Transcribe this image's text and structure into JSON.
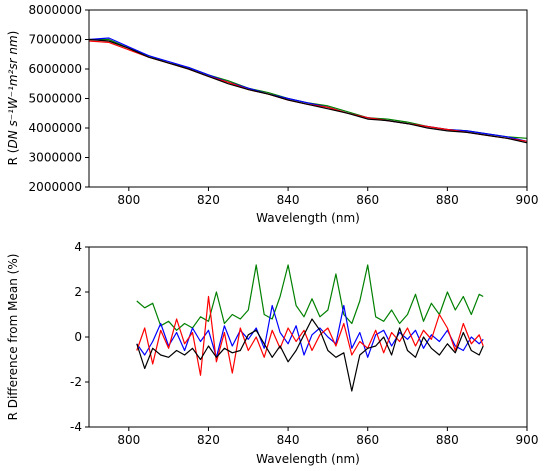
{
  "chart_data": [
    {
      "type": "line",
      "title": "",
      "xlabel": "Wavelength (nm)",
      "ylabel_prefix": "R (",
      "ylabel_units": "DN s⁻¹W⁻¹m²sr nm",
      "ylabel_suffix": ")",
      "xlim": [
        790,
        900
      ],
      "ylim": [
        2000000,
        8000000
      ],
      "xticks": [
        800,
        820,
        840,
        860,
        880,
        900
      ],
      "yticks": [
        2000000,
        3000000,
        4000000,
        5000000,
        6000000,
        7000000,
        8000000
      ],
      "ytick_labels": [
        "2000000",
        "3000000",
        "4000000",
        "5000000",
        "6000000",
        "7000000",
        "8000000"
      ],
      "grid": false,
      "series": [
        {
          "color": "#008000",
          "x": [
            790,
            795,
            800,
            805,
            810,
            815,
            820,
            825,
            830,
            835,
            840,
            845,
            850,
            855,
            860,
            865,
            870,
            875,
            880,
            885,
            890,
            895,
            900
          ],
          "values": [
            7000000,
            7000000,
            6700000,
            6450000,
            6200000,
            6050000,
            5800000,
            5600000,
            5350000,
            5200000,
            5000000,
            4850000,
            4750000,
            4550000,
            4350000,
            4300000,
            4200000,
            4050000,
            3950000,
            3900000,
            3800000,
            3700000,
            3650000
          ]
        },
        {
          "color": "#0000ff",
          "x": [
            790,
            795,
            800,
            805,
            810,
            815,
            820,
            825,
            830,
            835,
            840,
            845,
            850,
            855,
            860,
            865,
            870,
            875,
            880,
            885,
            890,
            895,
            900
          ],
          "values": [
            7000000,
            7050000,
            6750000,
            6450000,
            6250000,
            6050000,
            5800000,
            5550000,
            5350000,
            5150000,
            5000000,
            4850000,
            4700000,
            4500000,
            4350000,
            4250000,
            4150000,
            4050000,
            3950000,
            3900000,
            3800000,
            3700000,
            3550000
          ]
        },
        {
          "color": "#ff0000",
          "x": [
            790,
            795,
            800,
            805,
            810,
            815,
            820,
            825,
            830,
            835,
            840,
            845,
            850,
            855,
            860,
            865,
            870,
            875,
            880,
            885,
            890,
            895,
            900
          ],
          "values": [
            6950000,
            6900000,
            6650000,
            6400000,
            6200000,
            6000000,
            5750000,
            5550000,
            5300000,
            5150000,
            4950000,
            4800000,
            4700000,
            4500000,
            4350000,
            4250000,
            4150000,
            4050000,
            3950000,
            3850000,
            3750000,
            3650000,
            3550000
          ]
        },
        {
          "color": "#000000",
          "x": [
            790,
            795,
            800,
            805,
            810,
            815,
            820,
            825,
            830,
            835,
            840,
            845,
            850,
            855,
            860,
            865,
            870,
            875,
            880,
            885,
            890,
            895,
            900
          ],
          "values": [
            7000000,
            6950000,
            6700000,
            6400000,
            6200000,
            6000000,
            5750000,
            5500000,
            5300000,
            5150000,
            4950000,
            4800000,
            4650000,
            4500000,
            4300000,
            4250000,
            4150000,
            4000000,
            3900000,
            3850000,
            3750000,
            3650000,
            3500000
          ]
        }
      ]
    },
    {
      "type": "line",
      "title": "",
      "xlabel": "Wavelength (nm)",
      "ylabel": "R Difference from Mean (%)",
      "xlim": [
        790,
        900
      ],
      "ylim": [
        -4,
        4
      ],
      "xticks": [
        800,
        820,
        840,
        860,
        880,
        900
      ],
      "yticks": [
        -4,
        -2,
        0,
        2,
        4
      ],
      "grid": false,
      "series": [
        {
          "color": "#008000",
          "x": [
            802,
            804,
            806,
            808,
            810,
            812,
            814,
            816,
            818,
            820,
            822,
            824,
            826,
            828,
            830,
            832,
            834,
            836,
            838,
            840,
            842,
            844,
            846,
            848,
            850,
            852,
            854,
            856,
            858,
            860,
            862,
            864,
            866,
            868,
            870,
            872,
            874,
            876,
            878,
            880,
            882,
            884,
            886,
            888,
            889
          ],
          "values": [
            1.6,
            1.3,
            1.5,
            0.5,
            0.7,
            0.3,
            0.6,
            0.4,
            0.9,
            0.7,
            2.0,
            0.6,
            1.0,
            0.8,
            1.2,
            3.2,
            1.0,
            0.8,
            1.8,
            3.2,
            1.4,
            0.9,
            1.7,
            0.9,
            1.2,
            2.8,
            1.0,
            0.6,
            1.6,
            3.2,
            0.9,
            0.7,
            1.2,
            0.6,
            1.0,
            1.9,
            0.7,
            1.5,
            1.0,
            2.0,
            1.2,
            1.8,
            1.0,
            1.9,
            1.8
          ]
        },
        {
          "color": "#0000ff",
          "x": [
            802,
            804,
            806,
            808,
            810,
            812,
            814,
            816,
            818,
            820,
            822,
            824,
            826,
            828,
            830,
            832,
            834,
            836,
            838,
            840,
            842,
            844,
            846,
            848,
            850,
            852,
            854,
            856,
            858,
            860,
            862,
            864,
            866,
            868,
            870,
            872,
            874,
            876,
            878,
            880,
            882,
            884,
            886,
            888,
            889
          ],
          "values": [
            -0.3,
            -0.8,
            -0.2,
            0.6,
            -0.4,
            0.2,
            -0.6,
            0.4,
            -0.2,
            0.3,
            -0.9,
            0.5,
            -0.4,
            0.3,
            -0.1,
            0.4,
            -0.5,
            1.4,
            0.2,
            -0.3,
            0.5,
            -0.8,
            0.1,
            0.4,
            0.0,
            -0.3,
            1.4,
            -0.5,
            0.2,
            -0.9,
            0.1,
            0.3,
            -0.4,
            0.2,
            -0.1,
            0.3,
            -0.5,
            0.1,
            -0.2,
            0.3,
            -0.4,
            -0.6,
            0.0,
            -0.3,
            -0.1
          ]
        },
        {
          "color": "#ff0000",
          "x": [
            802,
            804,
            806,
            808,
            810,
            812,
            814,
            816,
            818,
            820,
            822,
            824,
            826,
            828,
            830,
            832,
            834,
            836,
            838,
            840,
            842,
            844,
            846,
            848,
            850,
            852,
            854,
            856,
            858,
            860,
            862,
            864,
            866,
            868,
            870,
            872,
            874,
            876,
            878,
            880,
            882,
            884,
            886,
            888,
            889
          ],
          "values": [
            -0.6,
            0.4,
            -1.2,
            0.3,
            -0.5,
            0.8,
            -0.3,
            0.2,
            -1.7,
            1.8,
            -1.1,
            0.2,
            -1.6,
            0.4,
            -0.6,
            0.0,
            -0.9,
            0.3,
            -0.5,
            0.4,
            -0.2,
            0.3,
            -0.6,
            0.1,
            0.4,
            -0.4,
            0.6,
            -0.8,
            -0.2,
            -0.5,
            0.3,
            -0.7,
            0.2,
            -0.2,
            0.4,
            -0.4,
            0.3,
            -0.1,
            1.0,
            0.4,
            -0.6,
            0.6,
            -0.3,
            0.1,
            -0.4
          ]
        },
        {
          "color": "#000000",
          "x": [
            802,
            804,
            806,
            808,
            810,
            812,
            814,
            816,
            818,
            820,
            822,
            824,
            826,
            828,
            830,
            832,
            834,
            836,
            838,
            840,
            842,
            844,
            846,
            848,
            850,
            852,
            854,
            856,
            858,
            860,
            862,
            864,
            866,
            868,
            870,
            872,
            874,
            876,
            878,
            880,
            882,
            884,
            886,
            888,
            889
          ],
          "values": [
            -0.3,
            -1.4,
            -0.5,
            -0.8,
            -0.9,
            -0.6,
            -0.8,
            -0.5,
            -1.0,
            -0.4,
            -0.9,
            -0.5,
            -0.7,
            -0.6,
            0.1,
            0.3,
            -0.3,
            -0.9,
            -0.4,
            -1.1,
            -0.6,
            0.1,
            0.8,
            0.3,
            -0.6,
            -0.9,
            -0.7,
            -2.4,
            -0.8,
            -0.5,
            -0.4,
            0.0,
            -0.8,
            0.4,
            -0.6,
            -0.9,
            0.0,
            -0.5,
            -0.8,
            -0.3,
            -0.7,
            0.2,
            -0.6,
            -0.8,
            -0.4
          ]
        }
      ]
    }
  ]
}
